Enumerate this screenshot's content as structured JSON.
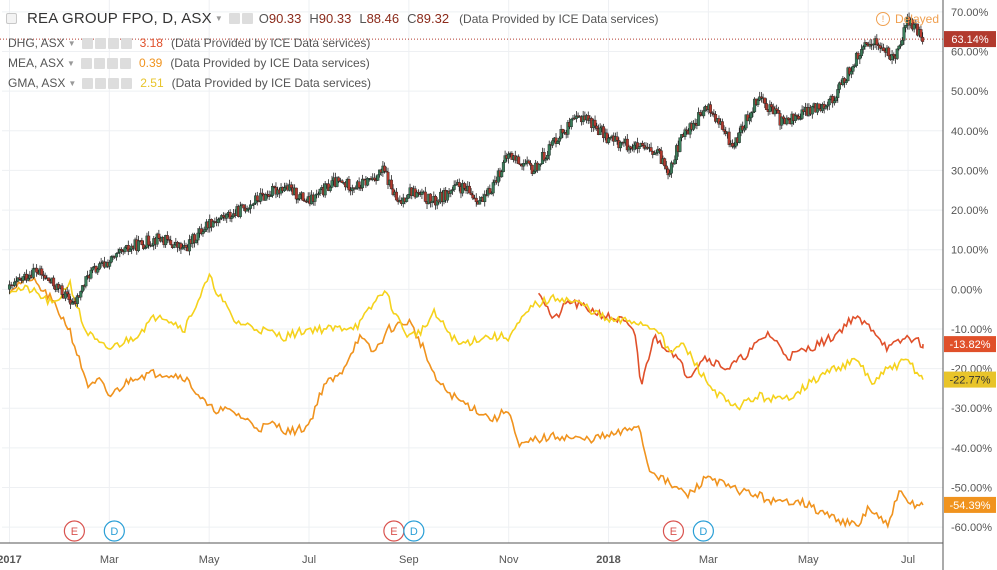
{
  "header": {
    "main_symbol": "REA GROUP FPO, D, ASX",
    "ohlc": [
      {
        "label": "O",
        "value": "90.33"
      },
      {
        "label": "H",
        "value": "90.33"
      },
      {
        "label": "L",
        "value": "88.46"
      },
      {
        "label": "C",
        "value": "89.32"
      }
    ],
    "provider_note": "(Data Provided by ICE Data services)",
    "delayed_label": "Delayed",
    "delayed_icon": "!"
  },
  "comparisons": [
    {
      "symbol": "DHG, ASX",
      "value": "3.18",
      "color": "#e0502a",
      "note": "(Data Provided by ICE Data services)"
    },
    {
      "symbol": "MEA, ASX",
      "value": "0.39",
      "color": "#f0931e",
      "note": "(Data Provided by ICE Data services)"
    },
    {
      "symbol": "GMA, ASX",
      "value": "2.51",
      "color": "#e8c42a",
      "note": "(Data Provided by ICE Data services)"
    }
  ],
  "colors": {
    "up": "#3a7d5a",
    "down": "#b23a2e",
    "DHG": "#e0502a",
    "MEA": "#f0931e",
    "GMA": "#f5d21c",
    "price_line": "#b23a2e",
    "E": "#d9534f",
    "D": "#2a9fd6"
  },
  "chart_data": {
    "type": "line",
    "title": "REA GROUP FPO, D, ASX",
    "xlabel": "",
    "ylabel": "",
    "ylim": [
      -64,
      73
    ],
    "y_tick_labels": [
      "70.00%",
      "60.00%",
      "50.00%",
      "40.00%",
      "30.00%",
      "20.00%",
      "10.00%",
      "0.00%",
      "-10.00%",
      "-20.00%",
      "-30.00%",
      "-40.00%",
      "-50.00%",
      "-60.00%"
    ],
    "y_tick_values": [
      70,
      60,
      50,
      40,
      30,
      20,
      10,
      0,
      -10,
      -20,
      -30,
      -40,
      -50,
      -60
    ],
    "x_tick_labels": [
      "2017",
      "Mar",
      "May",
      "Jul",
      "Sep",
      "Nov",
      "2018",
      "Mar",
      "May",
      "Jul"
    ],
    "x_tick_months": [
      0,
      2,
      4,
      6,
      8,
      10,
      12,
      14,
      16,
      18
    ],
    "grid": true,
    "legend_position": "top-left",
    "last_value_labels": [
      {
        "label": "63.14%",
        "value": 63.14,
        "color": "#b23a2e"
      },
      {
        "label": "-13.82%",
        "value": -13.82,
        "color": "#e0502a"
      },
      {
        "label": "-22.77%",
        "value": -22.77,
        "color": "#e8c42a"
      },
      {
        "label": "-54.39%",
        "value": -54.39,
        "color": "#f0931e"
      }
    ],
    "events": [
      {
        "label": "E",
        "month": 1.3,
        "kind": "E"
      },
      {
        "label": "D",
        "month": 2.1,
        "kind": "D"
      },
      {
        "label": "E",
        "month": 7.7,
        "kind": "E"
      },
      {
        "label": "D",
        "month": 8.1,
        "kind": "D"
      },
      {
        "label": "E",
        "month": 13.3,
        "kind": "E"
      },
      {
        "label": "D",
        "month": 13.9,
        "kind": "D"
      }
    ],
    "series": [
      {
        "name": "REA GROUP FPO",
        "kind": "candles",
        "month": [
          0,
          0.5,
          1,
          1.3,
          1.6,
          2,
          2.5,
          3,
          3.5,
          4,
          4.5,
          5,
          5.5,
          6,
          6.5,
          7,
          7.5,
          7.8,
          8,
          8.5,
          9,
          9.5,
          10,
          10.5,
          11,
          11.5,
          12,
          12.5,
          13,
          13.2,
          13.5,
          14,
          14.5,
          15,
          15.5,
          16,
          16.5,
          17,
          17.3,
          17.7,
          18,
          18.3
        ],
        "values": [
          0,
          5,
          0,
          -4,
          4,
          7,
          11,
          13,
          10,
          17,
          19,
          23,
          26,
          22,
          27,
          26,
          30,
          21,
          25,
          22,
          26,
          22,
          34,
          30,
          39,
          44,
          38,
          36,
          34,
          30,
          39,
          46,
          36,
          49,
          42,
          45,
          48,
          59,
          63,
          58,
          68,
          63.14
        ]
      },
      {
        "name": "DHG",
        "month": [
          10.6,
          10.9,
          11.2,
          11.6,
          12,
          12.3,
          12.55,
          12.65,
          12.9,
          13.3,
          13.6,
          13.9,
          14.4,
          14.8,
          15.2,
          15.6,
          16,
          16.5,
          16.9,
          17.3,
          17.6,
          18,
          18.3
        ],
        "values": [
          0,
          -8,
          -3,
          -5,
          -7,
          -8,
          -12,
          -25,
          -12,
          -16,
          -22,
          -17,
          -20,
          -16,
          -11,
          -17,
          -15,
          -12,
          -7,
          -10,
          -15,
          -12,
          -13.82
        ]
      },
      {
        "name": "MEA",
        "month": [
          0,
          0.4,
          0.8,
          1.2,
          1.4,
          1.6,
          1.8,
          2,
          2.5,
          3,
          3.5,
          4,
          4.5,
          5,
          5.3,
          5.6,
          5.9,
          6,
          6.3,
          6.6,
          7,
          7.3,
          7.6,
          8,
          8.3,
          8.5,
          8.7,
          9,
          9.3,
          9.7,
          10,
          10.2,
          10.5,
          11,
          11.5,
          12,
          12.3,
          12.6,
          12.8,
          13.2,
          13.6,
          14,
          14.4,
          15,
          15.4,
          15.8,
          16.2,
          16.6,
          17,
          17.2,
          17.6,
          17.8,
          18,
          18.3
        ],
        "values": [
          0,
          3,
          -2,
          -10,
          -18,
          -25,
          -23,
          -27,
          -22,
          -21,
          -22,
          -30,
          -31,
          -35,
          -34,
          -36,
          -35,
          -34,
          -24,
          -22,
          -12,
          -16,
          -10,
          -8,
          -15,
          -22,
          -25,
          -28,
          -30,
          -33,
          -30,
          -40,
          -38,
          -37,
          -38,
          -37,
          -36,
          -34,
          -45,
          -49,
          -52,
          -47,
          -50,
          -52,
          -54,
          -53,
          -56,
          -58,
          -60,
          -55,
          -60,
          -51,
          -54,
          -54.39
        ]
      },
      {
        "name": "GMA",
        "month": [
          0,
          0.4,
          0.9,
          1.2,
          1.5,
          1.8,
          2,
          2.5,
          3,
          3.5,
          4,
          4.5,
          5,
          5.5,
          6,
          6.5,
          7,
          7.5,
          7.8,
          8,
          8.3,
          8.5,
          9,
          9.5,
          10,
          10.5,
          11,
          11.5,
          12,
          12.5,
          13,
          13.2,
          13.5,
          14,
          14.5,
          15,
          15.5,
          16,
          16.5,
          17,
          17.3,
          17.6,
          18,
          18.3
        ],
        "values": [
          0,
          0,
          -4,
          2,
          -10,
          -14,
          -15,
          -12,
          -6,
          -10,
          3,
          -8,
          -10,
          -12,
          -10,
          -10,
          -9,
          0,
          -8,
          -12,
          -10,
          -6,
          -14,
          -12,
          -12,
          -4,
          -2,
          -4,
          -8,
          -8,
          -10,
          -16,
          -14,
          -24,
          -30,
          -27,
          -28,
          -24,
          -20,
          -18,
          -24,
          -20,
          -18,
          -22.77
        ]
      }
    ]
  }
}
